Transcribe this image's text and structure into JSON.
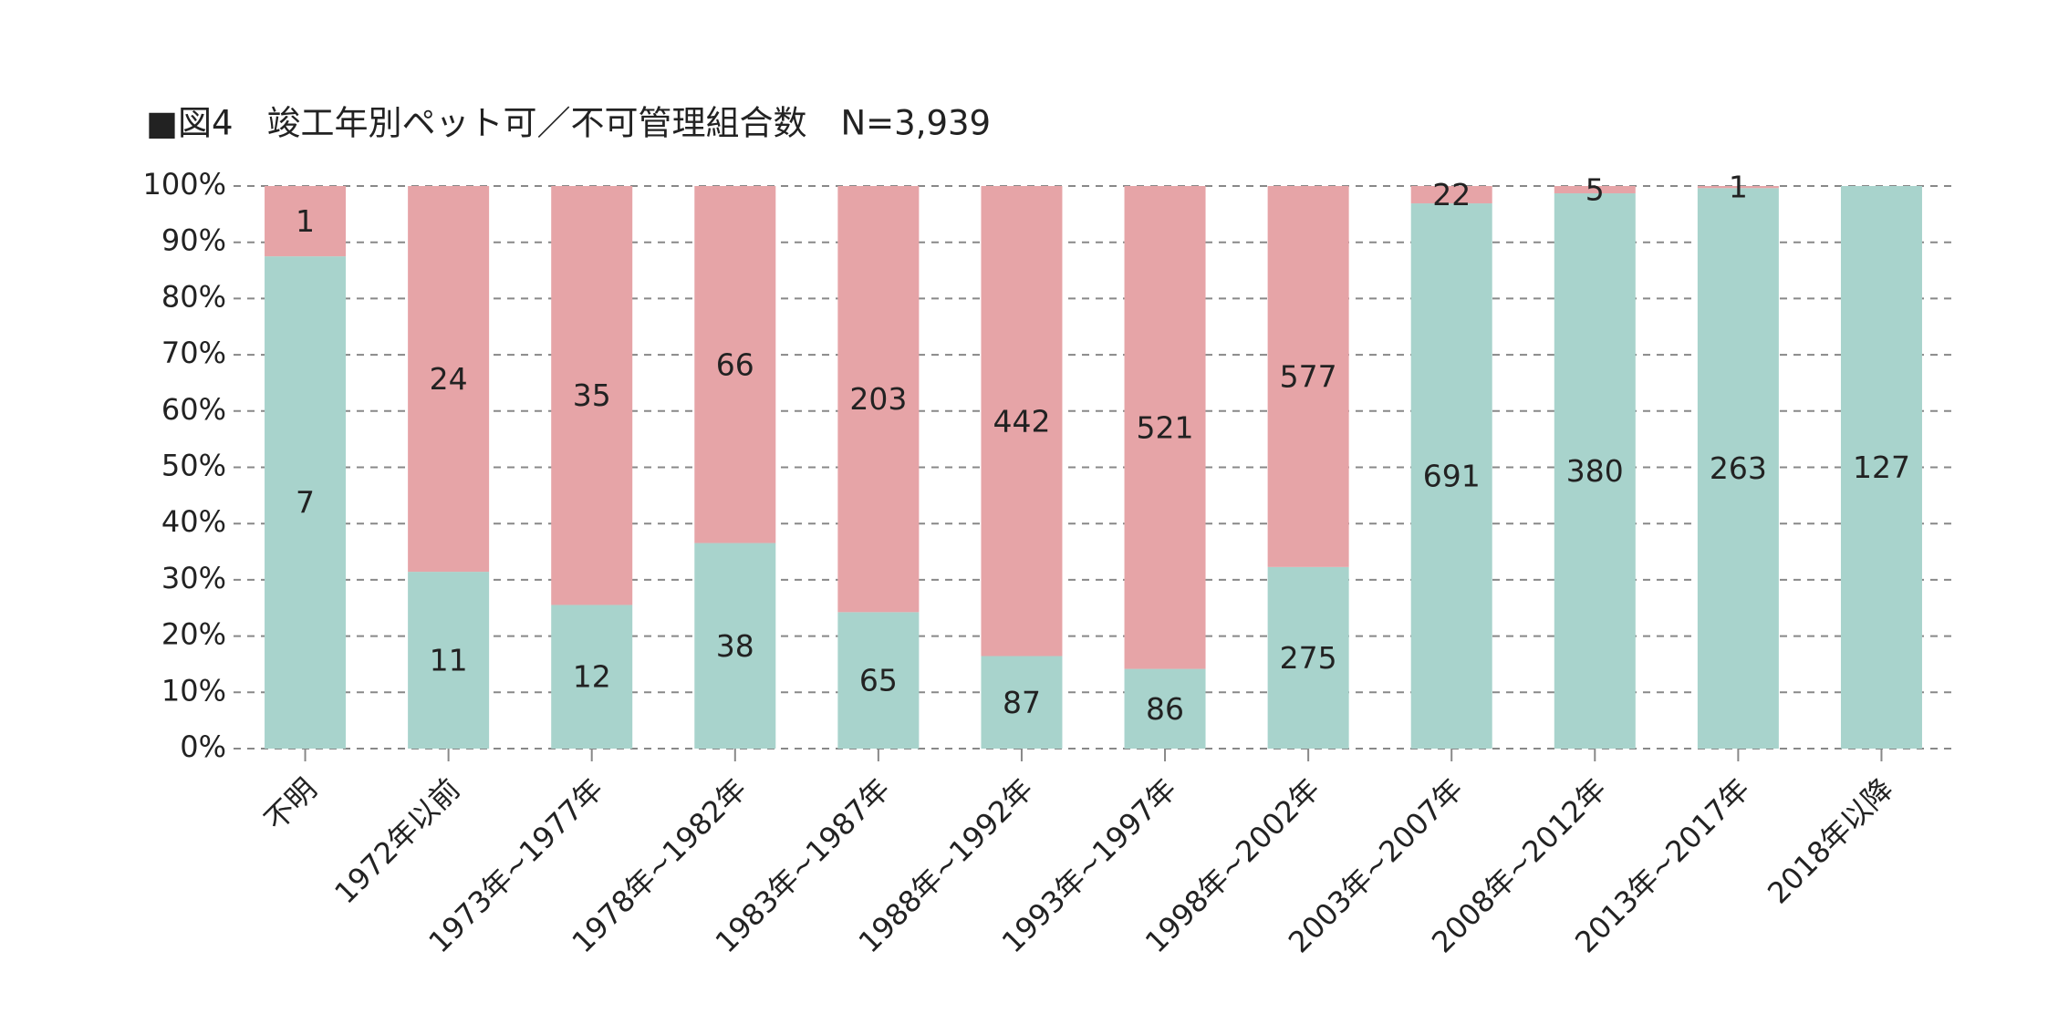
{
  "chart_data": {
    "type": "stacked_percent_bar",
    "title": "■図4　竣工年別ペット可／不可管理組合数　N=3,939",
    "categories": [
      "不明",
      "1972年以前",
      "1973年~1977年",
      "1978年~1982年",
      "1983年~1987年",
      "1988年~1992年",
      "1993年~1997年",
      "1998年~2002年",
      "2003年~2007年",
      "2008年~2012年",
      "2013年~2017年",
      "2018年以降"
    ],
    "series": [
      {
        "color": "#a8d3cc",
        "values": [
          7,
          11,
          12,
          38,
          65,
          87,
          86,
          275,
          691,
          380,
          263,
          127
        ]
      },
      {
        "color": "#e6a4a7",
        "values": [
          1,
          24,
          35,
          66,
          203,
          442,
          521,
          577,
          22,
          5,
          1,
          null
        ]
      }
    ],
    "ylim": [
      0,
      100
    ],
    "yticks": [
      {
        "value": 0,
        "label": "0%"
      },
      {
        "value": 10,
        "label": "10%"
      },
      {
        "value": 20,
        "label": "20%"
      },
      {
        "value": 30,
        "label": "30%"
      },
      {
        "value": 40,
        "label": "40%"
      },
      {
        "value": 50,
        "label": "50%"
      },
      {
        "value": 60,
        "label": "60%"
      },
      {
        "value": 70,
        "label": "70%"
      },
      {
        "value": 80,
        "label": "80%"
      },
      {
        "value": 90,
        "label": "90%"
      },
      {
        "value": 100,
        "label": "100%"
      }
    ],
    "grid": true
  }
}
